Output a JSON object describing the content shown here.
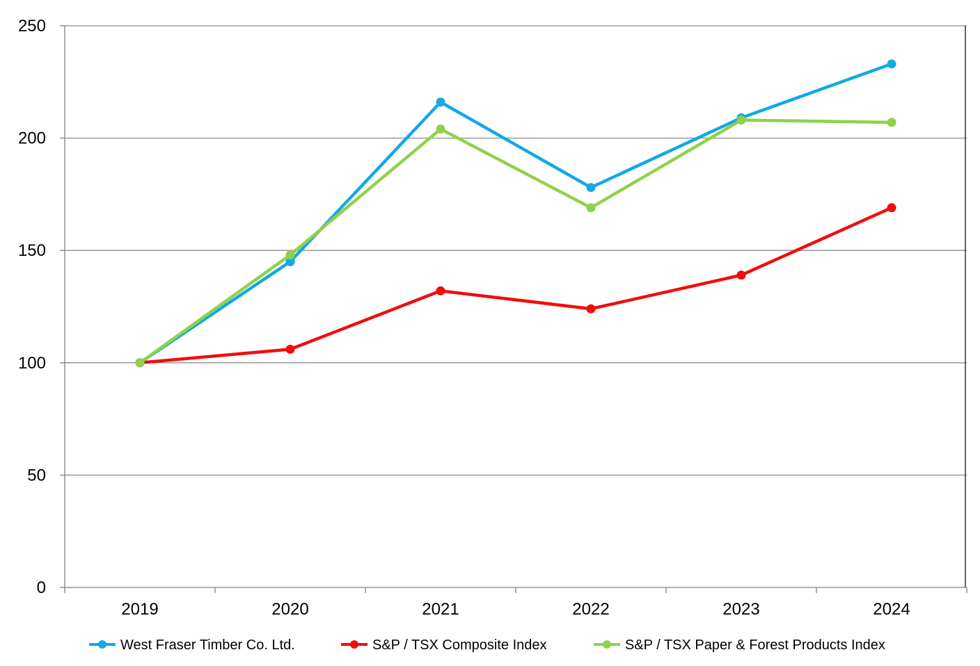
{
  "chart_data": {
    "type": "line",
    "title": "",
    "xlabel": "",
    "ylabel": "",
    "categories": [
      "2019",
      "2020",
      "2021",
      "2022",
      "2023",
      "2024"
    ],
    "ylim": [
      0,
      250
    ],
    "yticks": [
      0,
      50,
      100,
      150,
      200,
      250
    ],
    "grid": true,
    "legend_position": "bottom",
    "series": [
      {
        "name": "West Fraser Timber Co. Ltd.",
        "color": "#13A8E6",
        "values": [
          100,
          145,
          216,
          178,
          209,
          233
        ]
      },
      {
        "name": "S&P / TSX Composite Index",
        "color": "#F20D0D",
        "values": [
          100,
          106,
          132,
          124,
          139,
          169
        ]
      },
      {
        "name": "S&P / TSX Paper & Forest Products Index",
        "color": "#8ED24C",
        "values": [
          100,
          148,
          204,
          169,
          208,
          207
        ]
      }
    ]
  }
}
